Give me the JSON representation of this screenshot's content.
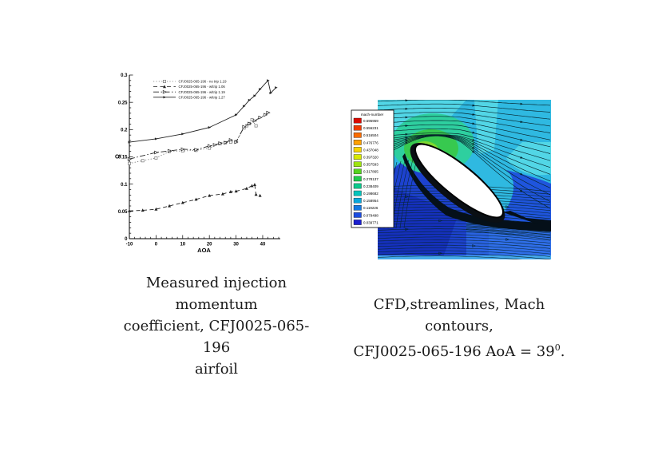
{
  "page": {
    "background": "#ffffff"
  },
  "chart_data": {
    "type": "line",
    "title": "",
    "xlabel": "AOA",
    "ylabel": "Cμ",
    "xlim": [
      -10,
      46
    ],
    "ylim": [
      0,
      0.3
    ],
    "x_ticks": [
      -10,
      0,
      10,
      20,
      30,
      40
    ],
    "y_ticks": [
      0,
      0.05,
      0.1,
      0.15,
      0.2,
      0.25,
      0.3
    ],
    "grid": false,
    "legend_position": "upper-left",
    "series": [
      {
        "name": "CFJ0025-065-196 - no trip 1.19",
        "line": "dotted",
        "marker": "open-square",
        "color": "#777777",
        "points": [
          [
            -10,
            0.138
          ],
          [
            -5,
            0.143
          ],
          [
            0,
            0.148
          ],
          [
            5,
            0.16
          ],
          [
            10,
            0.161
          ],
          [
            15,
            0.162
          ],
          [
            20,
            0.166
          ],
          [
            24,
            0.174
          ],
          [
            26,
            0.176
          ],
          [
            28,
            0.177
          ],
          [
            30,
            0.178
          ],
          [
            33,
            0.203
          ],
          [
            34,
            0.207
          ],
          [
            35,
            0.211
          ],
          [
            36,
            0.218
          ],
          [
            37.5,
            0.207
          ]
        ]
      },
      {
        "name": "CFJ0025-065-196 - w/trip 1.06",
        "line": "dashed",
        "marker": "filled-triangle-up",
        "color": "#222222",
        "points": [
          [
            -10,
            0.051
          ],
          [
            -5,
            0.052
          ],
          [
            0,
            0.054
          ],
          [
            5,
            0.06
          ],
          [
            10,
            0.066
          ],
          [
            15,
            0.072
          ],
          [
            20,
            0.079
          ],
          [
            25,
            0.082
          ],
          [
            28,
            0.086
          ],
          [
            30,
            0.087
          ],
          [
            34,
            0.092
          ],
          [
            36,
            0.097
          ],
          [
            37,
            0.099
          ],
          [
            37.5,
            0.081
          ],
          [
            39,
            0.079
          ]
        ]
      },
      {
        "name": "CFJ0025-065-196 - w/trip 1.19",
        "line": "dash-dot",
        "marker": "open-triangle-right",
        "color": "#222222",
        "points": [
          [
            -10,
            0.146
          ],
          [
            0,
            0.158
          ],
          [
            5,
            0.161
          ],
          [
            10,
            0.164
          ],
          [
            15,
            0.163
          ],
          [
            20,
            0.17
          ],
          [
            22,
            0.172
          ],
          [
            24,
            0.175
          ],
          [
            26,
            0.176
          ],
          [
            28,
            0.181
          ],
          [
            30,
            0.177
          ],
          [
            33,
            0.205
          ],
          [
            35,
            0.211
          ],
          [
            37,
            0.216
          ],
          [
            39,
            0.222
          ],
          [
            41,
            0.227
          ],
          [
            42,
            0.231
          ]
        ]
      },
      {
        "name": "CFJ0025-065-196 - w/trip 1.27",
        "line": "solid",
        "marker": "filled-triangle-right",
        "color": "#222222",
        "points": [
          [
            -10,
            0.177
          ],
          [
            0,
            0.183
          ],
          [
            10,
            0.192
          ],
          [
            20,
            0.204
          ],
          [
            30,
            0.227
          ],
          [
            33,
            0.243
          ],
          [
            35,
            0.254
          ],
          [
            37,
            0.262
          ],
          [
            39,
            0.274
          ],
          [
            42,
            0.29
          ],
          [
            43,
            0.267
          ],
          [
            45,
            0.277
          ]
        ]
      }
    ]
  },
  "cfd": {
    "colorbar": {
      "title": "mach-number",
      "levels": [
        "0.595959",
        "0.556231",
        "0.516504",
        "0.476776",
        "0.437048",
        "0.397320",
        "0.357593",
        "0.317865",
        "0.278137",
        "0.238409",
        "0.198682",
        "0.158954",
        "0.119226",
        "0.079498",
        "0.039771"
      ],
      "colors": [
        "#da0a00",
        "#ef3b00",
        "#f96d00",
        "#ffa000",
        "#f7d300",
        "#d8ea00",
        "#9fe410",
        "#55d41f",
        "#20ca4d",
        "#0cc88c",
        "#04c4bc",
        "#09a8dc",
        "#1478e0",
        "#1c4ce0",
        "#1a1ed0"
      ]
    },
    "field_colors": {
      "cyan_base": "#2fb9e1",
      "cyan_light": "#52d6e6",
      "green_outer": "#2ecf9f",
      "green_mid": "#37c94f",
      "green_light": "#7fd82f",
      "yellow_green": "#c3e32e",
      "blue_base": "#1d42cf",
      "blue_deep": "#1530bd",
      "blue_bright": "#2a63e3",
      "blue_bright2": "#2f6ee8",
      "blue_strip": "#45a9ea",
      "line_color": "#06242c",
      "wake_color": "#051019"
    }
  },
  "captions": {
    "left": [
      "Measured injection momentum",
      "coefficient, CFJ0025-065-196",
      "airfoil"
    ],
    "right": {
      "line1": "CFD,streamlines, Mach contours,",
      "line2_pre": "CFJ0025-065-196 AoA = 39",
      "line2_sup": "0",
      "line2_post": "."
    }
  }
}
